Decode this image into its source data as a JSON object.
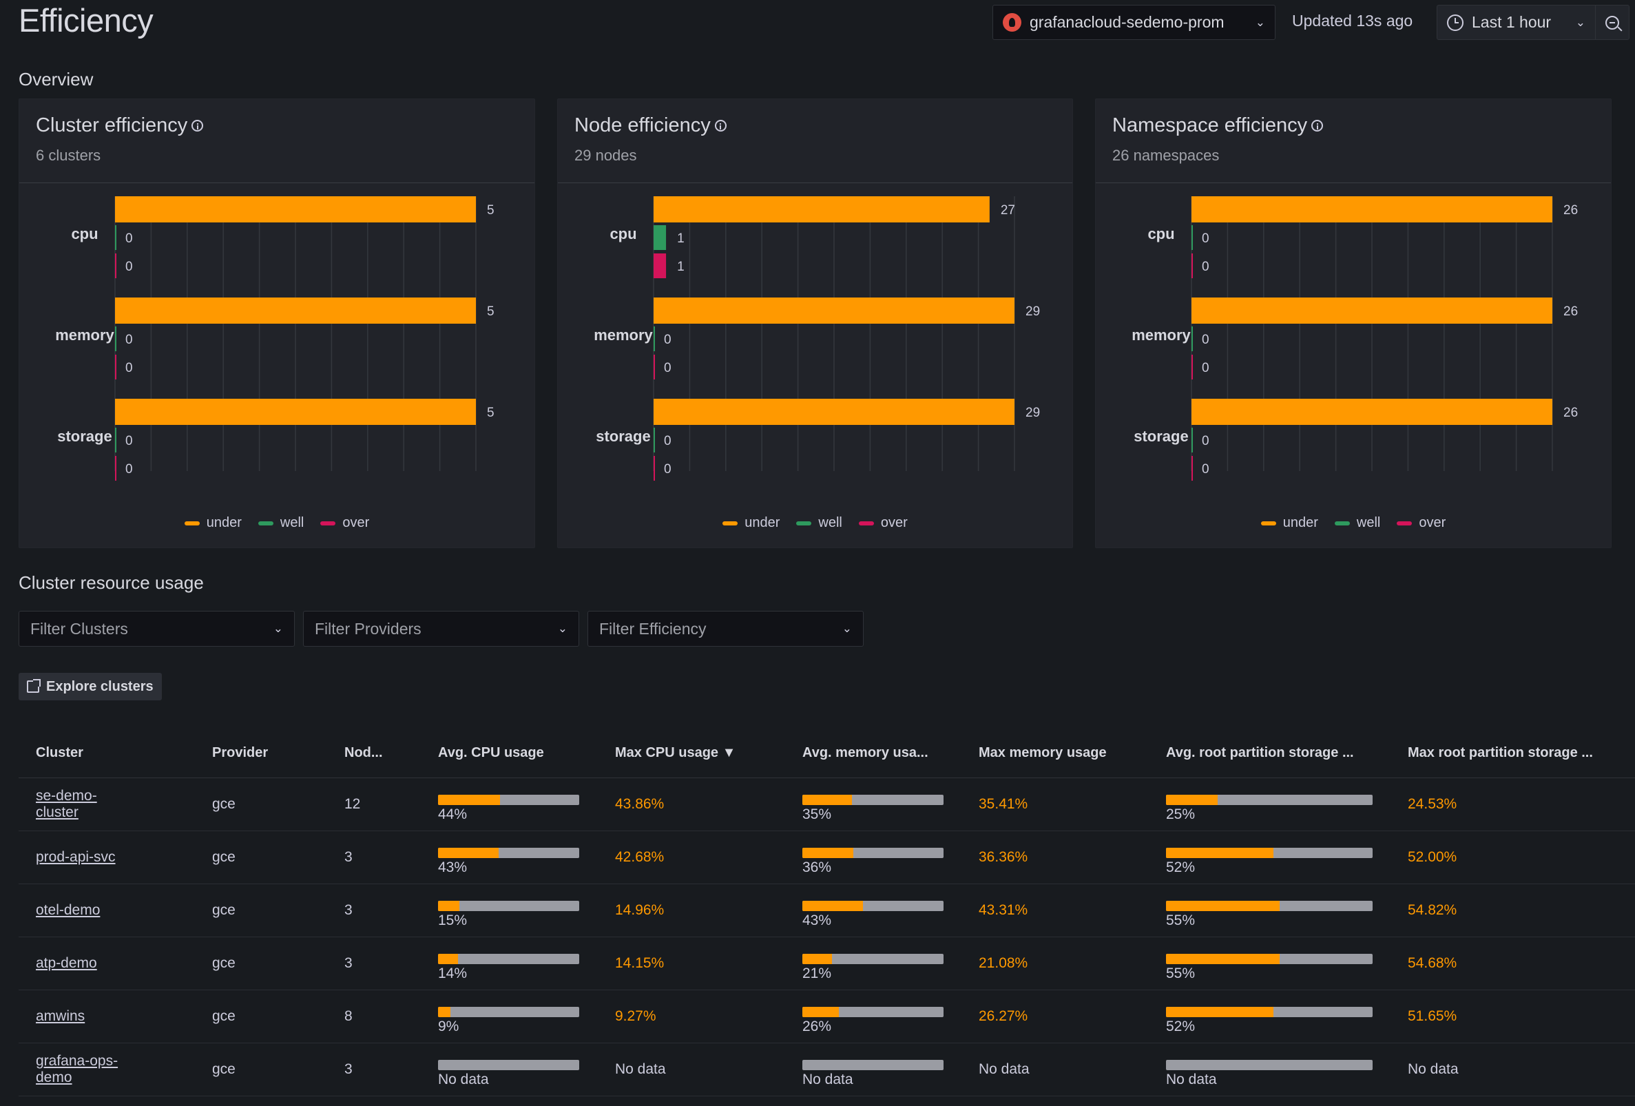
{
  "header": {
    "title": "Efficiency",
    "datasource": "grafanacloud-sedemo-prom",
    "updated": "Updated 13s ago",
    "time_range": "Last 1 hour"
  },
  "overview": {
    "title": "Overview",
    "legend": [
      "under",
      "well",
      "over"
    ],
    "colors": {
      "under": "#ff9900",
      "well": "#2e9a5e",
      "over": "#d4145a"
    },
    "panels": [
      {
        "title": "Cluster efficiency",
        "subtitle": "6 clusters"
      },
      {
        "title": "Node efficiency",
        "subtitle": "29 nodes"
      },
      {
        "title": "Namespace efficiency",
        "subtitle": "26 namespaces"
      }
    ]
  },
  "chart_data": [
    {
      "type": "bar",
      "orientation": "horizontal",
      "categories": [
        "cpu",
        "memory",
        "storage"
      ],
      "series": [
        {
          "name": "under",
          "values": [
            5,
            5,
            5
          ]
        },
        {
          "name": "well",
          "values": [
            0,
            0,
            0
          ]
        },
        {
          "name": "over",
          "values": [
            0,
            0,
            0
          ]
        }
      ],
      "xlim": [
        0,
        5
      ]
    },
    {
      "type": "bar",
      "orientation": "horizontal",
      "categories": [
        "cpu",
        "memory",
        "storage"
      ],
      "series": [
        {
          "name": "under",
          "values": [
            27,
            29,
            29
          ]
        },
        {
          "name": "well",
          "values": [
            1,
            0,
            0
          ]
        },
        {
          "name": "over",
          "values": [
            1,
            0,
            0
          ]
        }
      ],
      "xlim": [
        0,
        29
      ]
    },
    {
      "type": "bar",
      "orientation": "horizontal",
      "categories": [
        "cpu",
        "memory",
        "storage"
      ],
      "series": [
        {
          "name": "under",
          "values": [
            26,
            26,
            26
          ]
        },
        {
          "name": "well",
          "values": [
            0,
            0,
            0
          ]
        },
        {
          "name": "over",
          "values": [
            0,
            0,
            0
          ]
        }
      ],
      "xlim": [
        0,
        26
      ]
    }
  ],
  "usage": {
    "title": "Cluster resource usage",
    "filters": [
      "Filter Clusters",
      "Filter Providers",
      "Filter Efficiency"
    ],
    "explore_label": "Explore clusters",
    "columns": [
      "Cluster",
      "Provider",
      "Nod...",
      "Avg. CPU usage",
      "Max CPU usage ▼",
      "Avg. memory usa...",
      "Max memory usage",
      "Avg. root partition storage ...",
      "Max root partition storage ..."
    ],
    "rows": [
      {
        "cluster": "se-demo-cluster",
        "provider": "gce",
        "nodes": "12",
        "avg_cpu": "44%",
        "avg_cpu_frac": 0.44,
        "max_cpu": "43.86%",
        "avg_mem": "35%",
        "avg_mem_frac": 0.35,
        "max_mem": "35.41%",
        "avg_storage": "25%",
        "avg_storage_frac": 0.25,
        "max_storage": "24.53%"
      },
      {
        "cluster": "prod-api-svc",
        "provider": "gce",
        "nodes": "3",
        "avg_cpu": "43%",
        "avg_cpu_frac": 0.43,
        "max_cpu": "42.68%",
        "avg_mem": "36%",
        "avg_mem_frac": 0.36,
        "max_mem": "36.36%",
        "avg_storage": "52%",
        "avg_storage_frac": 0.52,
        "max_storage": "52.00%"
      },
      {
        "cluster": "otel-demo",
        "provider": "gce",
        "nodes": "3",
        "avg_cpu": "15%",
        "avg_cpu_frac": 0.15,
        "max_cpu": "14.96%",
        "avg_mem": "43%",
        "avg_mem_frac": 0.43,
        "max_mem": "43.31%",
        "avg_storage": "55%",
        "avg_storage_frac": 0.55,
        "max_storage": "54.82%"
      },
      {
        "cluster": "atp-demo",
        "provider": "gce",
        "nodes": "3",
        "avg_cpu": "14%",
        "avg_cpu_frac": 0.14,
        "max_cpu": "14.15%",
        "avg_mem": "21%",
        "avg_mem_frac": 0.21,
        "max_mem": "21.08%",
        "avg_storage": "55%",
        "avg_storage_frac": 0.55,
        "max_storage": "54.68%"
      },
      {
        "cluster": "amwins",
        "provider": "gce",
        "nodes": "8",
        "avg_cpu": "9%",
        "avg_cpu_frac": 0.09,
        "max_cpu": "9.27%",
        "avg_mem": "26%",
        "avg_mem_frac": 0.26,
        "max_mem": "26.27%",
        "avg_storage": "52%",
        "avg_storage_frac": 0.52,
        "max_storage": "51.65%"
      },
      {
        "cluster": "grafana-ops-demo",
        "provider": "gce",
        "nodes": "3",
        "avg_cpu": "No data",
        "avg_cpu_frac": 0,
        "max_cpu": "No data",
        "avg_mem": "No data",
        "avg_mem_frac": 0,
        "max_mem": "No data",
        "avg_storage": "No data",
        "avg_storage_frac": 0,
        "max_storage": "No data"
      }
    ]
  }
}
